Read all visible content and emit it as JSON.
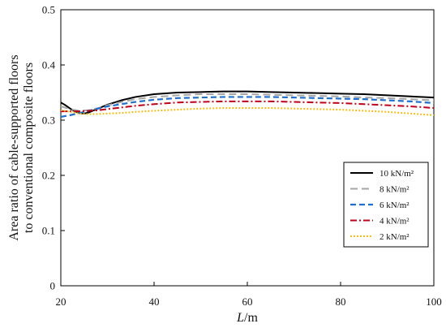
{
  "chart_data": {
    "type": "line",
    "xlabel_italic": "L",
    "xlabel_unit": "/m",
    "ylabel_line1": "Area ratio of cable-supported floors",
    "ylabel_line2": "to conventional composite floors",
    "xlim": [
      20,
      100
    ],
    "ylim": [
      0,
      0.5
    ],
    "xticks": [
      20,
      40,
      60,
      80,
      100
    ],
    "yticks": [
      0,
      0.1,
      0.2,
      0.3,
      0.4,
      0.5
    ],
    "ytick_labels": [
      "0",
      "0.1",
      "0.2",
      "0.3",
      "0.4",
      "0.5"
    ],
    "grid": false,
    "legend_position": "right-middle",
    "series": [
      {
        "name": "10 kN/m²",
        "color": "#000000",
        "dash": "solid",
        "x": [
          20,
          21,
          22,
          23,
          24,
          25,
          26,
          28,
          30,
          33,
          36,
          40,
          45,
          50,
          55,
          60,
          65,
          70,
          75,
          80,
          85,
          90,
          95,
          100
        ],
        "y": [
          0.332,
          0.327,
          0.321,
          0.316,
          0.313,
          0.312,
          0.314,
          0.321,
          0.328,
          0.336,
          0.342,
          0.347,
          0.35,
          0.351,
          0.352,
          0.352,
          0.351,
          0.35,
          0.349,
          0.348,
          0.347,
          0.345,
          0.343,
          0.341
        ]
      },
      {
        "name": "8 kN/m²",
        "color": "#a6a6a6",
        "dash": "longdash",
        "x": [
          20,
          22,
          24,
          26,
          28,
          30,
          33,
          36,
          40,
          45,
          50,
          55,
          60,
          65,
          70,
          75,
          80,
          85,
          90,
          95,
          100
        ],
        "y": [
          0.325,
          0.32,
          0.317,
          0.318,
          0.322,
          0.327,
          0.333,
          0.338,
          0.342,
          0.345,
          0.347,
          0.347,
          0.347,
          0.346,
          0.345,
          0.344,
          0.343,
          0.341,
          0.34,
          0.338,
          0.336
        ]
      },
      {
        "name": "6 kN/m²",
        "color": "#1f6fd1",
        "dash": "dash",
        "x": [
          20,
          22,
          24,
          26,
          28,
          30,
          33,
          36,
          40,
          45,
          50,
          55,
          60,
          65,
          70,
          75,
          80,
          85,
          90,
          95,
          100
        ],
        "y": [
          0.306,
          0.309,
          0.313,
          0.317,
          0.321,
          0.325,
          0.329,
          0.333,
          0.337,
          0.34,
          0.341,
          0.342,
          0.342,
          0.342,
          0.341,
          0.34,
          0.339,
          0.338,
          0.336,
          0.334,
          0.331
        ]
      },
      {
        "name": "4 kN/m²",
        "color": "#c0001a",
        "dash": "dashdot",
        "x": [
          20,
          22,
          24,
          26,
          28,
          30,
          33,
          36,
          40,
          45,
          50,
          55,
          60,
          65,
          70,
          75,
          80,
          85,
          90,
          95,
          100
        ],
        "y": [
          0.316,
          0.316,
          0.316,
          0.317,
          0.318,
          0.32,
          0.323,
          0.326,
          0.329,
          0.332,
          0.333,
          0.334,
          0.334,
          0.334,
          0.333,
          0.332,
          0.331,
          0.329,
          0.327,
          0.325,
          0.322
        ]
      },
      {
        "name": "2 kN/m²",
        "color": "#f2b800",
        "dash": "dot",
        "x": [
          20,
          22,
          24,
          26,
          28,
          30,
          33,
          36,
          40,
          45,
          50,
          55,
          60,
          65,
          70,
          75,
          80,
          85,
          90,
          95,
          100
        ],
        "y": [
          0.318,
          0.315,
          0.312,
          0.311,
          0.311,
          0.312,
          0.313,
          0.315,
          0.317,
          0.319,
          0.321,
          0.322,
          0.322,
          0.322,
          0.321,
          0.32,
          0.319,
          0.317,
          0.315,
          0.312,
          0.309
        ]
      }
    ]
  }
}
